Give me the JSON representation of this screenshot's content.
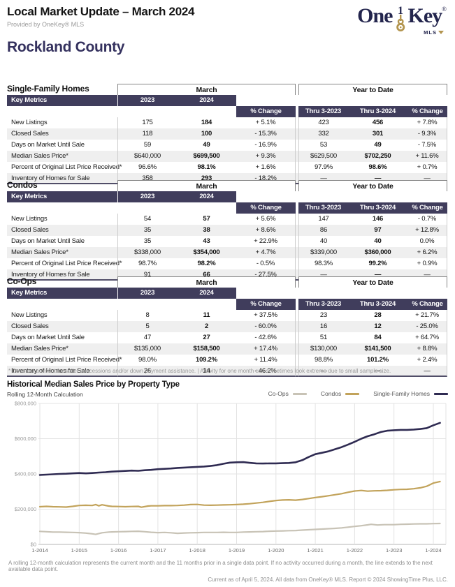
{
  "header": {
    "title": "Local Market Update – March 2024",
    "subtitle": "Provided by OneKey® MLS",
    "region": "Rockland County",
    "logo": {
      "one": "One",
      "key": "Key",
      "reg": "®",
      "numeral": "1",
      "mls": "MLS",
      "gold": "#b3954f",
      "navy": "#23254d"
    }
  },
  "tables": [
    {
      "section": "Single-Family Homes",
      "group_headers": [
        "March",
        "Year to Date"
      ],
      "key_metrics_label": "Key Metrics",
      "columns": [
        "2023",
        "2024",
        "% Change",
        "Thru 3-2023",
        "Thru 3-2024",
        "% Change"
      ],
      "rows": [
        {
          "metric": "New Listings",
          "values": [
            "175",
            "184",
            "+ 5.1%",
            "423",
            "456",
            "+ 7.8%"
          ]
        },
        {
          "metric": "Closed Sales",
          "values": [
            "118",
            "100",
            "- 15.3%",
            "332",
            "301",
            "- 9.3%"
          ]
        },
        {
          "metric": "Days on Market Until Sale",
          "values": [
            "59",
            "49",
            "- 16.9%",
            "53",
            "49",
            "- 7.5%"
          ]
        },
        {
          "metric": "Median Sales Price*",
          "values": [
            "$640,000",
            "$699,500",
            "+ 9.3%",
            "$629,500",
            "$702,250",
            "+ 11.6%"
          ]
        },
        {
          "metric": "Percent of Original List Price Received*",
          "values": [
            "96.6%",
            "98.1%",
            "+ 1.6%",
            "97.9%",
            "98.6%",
            "+ 0.7%"
          ]
        },
        {
          "metric": "Inventory of Homes for Sale",
          "values": [
            "358",
            "293",
            "- 18.2%",
            "—",
            "—",
            "—"
          ]
        }
      ]
    },
    {
      "section": "Condos",
      "group_headers": [
        "March",
        "Year to Date"
      ],
      "key_metrics_label": "Key Metrics",
      "columns": [
        "2023",
        "2024",
        "% Change",
        "Thru 3-2023",
        "Thru 3-2024",
        "% Change"
      ],
      "rows": [
        {
          "metric": "New Listings",
          "values": [
            "54",
            "57",
            "+ 5.6%",
            "147",
            "146",
            "- 0.7%"
          ]
        },
        {
          "metric": "Closed Sales",
          "values": [
            "35",
            "38",
            "+ 8.6%",
            "86",
            "97",
            "+ 12.8%"
          ]
        },
        {
          "metric": "Days on Market Until Sale",
          "values": [
            "35",
            "43",
            "+ 22.9%",
            "40",
            "40",
            "0.0%"
          ]
        },
        {
          "metric": "Median Sales Price*",
          "values": [
            "$338,000",
            "$354,000",
            "+ 4.7%",
            "$339,000",
            "$360,000",
            "+ 6.2%"
          ]
        },
        {
          "metric": "Percent of Original List Price Received*",
          "values": [
            "98.7%",
            "98.2%",
            "- 0.5%",
            "98.3%",
            "99.2%",
            "+ 0.9%"
          ]
        },
        {
          "metric": "Inventory of Homes for Sale",
          "values": [
            "91",
            "66",
            "- 27.5%",
            "—",
            "—",
            "—"
          ]
        }
      ]
    },
    {
      "section": "Co-Ops",
      "group_headers": [
        "March",
        "Year to Date"
      ],
      "key_metrics_label": "Key Metrics",
      "columns": [
        "2023",
        "2024",
        "% Change",
        "Thru 3-2023",
        "Thru 3-2024",
        "% Change"
      ],
      "rows": [
        {
          "metric": "New Listings",
          "values": [
            "8",
            "11",
            "+ 37.5%",
            "23",
            "28",
            "+ 21.7%"
          ]
        },
        {
          "metric": "Closed Sales",
          "values": [
            "5",
            "2",
            "- 60.0%",
            "16",
            "12",
            "- 25.0%"
          ]
        },
        {
          "metric": "Days on Market Until Sale",
          "values": [
            "47",
            "27",
            "- 42.6%",
            "51",
            "84",
            "+ 64.7%"
          ]
        },
        {
          "metric": "Median Sales Price*",
          "values": [
            "$135,000",
            "$158,500",
            "+ 17.4%",
            "$130,000",
            "$141,500",
            "+ 8.8%"
          ]
        },
        {
          "metric": "Percent of Original List Price Received*",
          "values": [
            "98.0%",
            "109.2%",
            "+ 11.4%",
            "98.8%",
            "101.2%",
            "+ 2.4%"
          ]
        },
        {
          "metric": "Inventory of Homes for Sale",
          "values": [
            "26",
            "14",
            "- 46.2%",
            "—",
            "—",
            "—"
          ]
        }
      ]
    }
  ],
  "table_footnote": "* Does not account for seller concessions and/or down payment assistance. | Activity for one month can sometimes look extreme due to small sample size.",
  "chart_data": {
    "type": "line",
    "title": "Historical Median Sales Price by Property Type",
    "subtitle": "Rolling 12-Month Calculation",
    "legend": [
      {
        "label": "Co-Ops",
        "color": "#c8c3b6"
      },
      {
        "label": "Condos",
        "color": "#c2a35b"
      },
      {
        "label": "Single-Family Homes",
        "color": "#2f2b52"
      }
    ],
    "legend_position": "top-right",
    "grid": true,
    "y_ticks": [
      0,
      200000,
      400000,
      600000,
      800000
    ],
    "y_tick_labels": [
      "$0",
      "$200,000",
      "$400,000",
      "$600,000",
      "$800,000"
    ],
    "x_tick_years": [
      2014,
      2015,
      2016,
      2017,
      2018,
      2019,
      2020,
      2021,
      2022,
      2023,
      2024
    ],
    "x_ticks": [
      "1-2014",
      "1-2015",
      "1-2016",
      "1-2017",
      "1-2018",
      "1-2019",
      "1-2020",
      "1-2021",
      "1-2022",
      "1-2023",
      "1-2024"
    ],
    "x_range": [
      2014,
      2024.25
    ],
    "y_range": [
      0,
      800000
    ],
    "series": [
      {
        "name": "Co-Ops",
        "color": "#c8c3b6",
        "points": [
          [
            2014.0,
            74000
          ],
          [
            2014.17,
            72000
          ],
          [
            2014.33,
            70000
          ],
          [
            2014.5,
            70000
          ],
          [
            2014.67,
            69000
          ],
          [
            2014.83,
            68000
          ],
          [
            2015.0,
            67000
          ],
          [
            2015.17,
            64000
          ],
          [
            2015.33,
            60000
          ],
          [
            2015.42,
            57000
          ],
          [
            2015.58,
            66000
          ],
          [
            2015.75,
            70000
          ],
          [
            2015.83,
            71000
          ],
          [
            2016.0,
            72000
          ],
          [
            2016.17,
            73000
          ],
          [
            2016.33,
            74000
          ],
          [
            2016.5,
            75000
          ],
          [
            2016.67,
            72000
          ],
          [
            2016.83,
            69000
          ],
          [
            2017.0,
            67000
          ],
          [
            2017.17,
            68000
          ],
          [
            2017.33,
            66000
          ],
          [
            2017.5,
            63000
          ],
          [
            2017.67,
            65000
          ],
          [
            2017.83,
            66000
          ],
          [
            2018.0,
            67000
          ],
          [
            2018.17,
            68000
          ],
          [
            2018.33,
            68000
          ],
          [
            2018.5,
            68000
          ],
          [
            2018.67,
            69000
          ],
          [
            2018.83,
            68000
          ],
          [
            2019.0,
            68000
          ],
          [
            2019.17,
            70000
          ],
          [
            2019.33,
            71000
          ],
          [
            2019.5,
            72000
          ],
          [
            2019.67,
            73000
          ],
          [
            2019.83,
            75000
          ],
          [
            2020.0,
            76000
          ],
          [
            2020.17,
            77000
          ],
          [
            2020.33,
            78000
          ],
          [
            2020.5,
            79000
          ],
          [
            2020.67,
            81000
          ],
          [
            2020.83,
            83000
          ],
          [
            2021.0,
            85000
          ],
          [
            2021.17,
            87000
          ],
          [
            2021.33,
            89000
          ],
          [
            2021.5,
            91000
          ],
          [
            2021.67,
            94000
          ],
          [
            2021.83,
            98000
          ],
          [
            2022.0,
            102000
          ],
          [
            2022.17,
            106000
          ],
          [
            2022.33,
            111000
          ],
          [
            2022.42,
            114000
          ],
          [
            2022.58,
            110000
          ],
          [
            2022.75,
            112000
          ],
          [
            2023.0,
            112000
          ],
          [
            2023.17,
            114000
          ],
          [
            2023.33,
            115000
          ],
          [
            2023.5,
            116000
          ],
          [
            2023.67,
            117000
          ],
          [
            2023.83,
            117000
          ],
          [
            2024.0,
            118000
          ],
          [
            2024.17,
            119000
          ]
        ]
      },
      {
        "name": "Condos",
        "color": "#c2a35b",
        "points": [
          [
            2014.0,
            214000
          ],
          [
            2014.17,
            216000
          ],
          [
            2014.33,
            214000
          ],
          [
            2014.5,
            213000
          ],
          [
            2014.67,
            212000
          ],
          [
            2014.83,
            216000
          ],
          [
            2015.0,
            221000
          ],
          [
            2015.17,
            222000
          ],
          [
            2015.33,
            221000
          ],
          [
            2015.42,
            226000
          ],
          [
            2015.5,
            219000
          ],
          [
            2015.58,
            225000
          ],
          [
            2015.75,
            218000
          ],
          [
            2015.83,
            216000
          ],
          [
            2016.0,
            215000
          ],
          [
            2016.17,
            214000
          ],
          [
            2016.33,
            215000
          ],
          [
            2016.5,
            216000
          ],
          [
            2016.58,
            211000
          ],
          [
            2016.75,
            218000
          ],
          [
            2016.83,
            219000
          ],
          [
            2017.0,
            219000
          ],
          [
            2017.17,
            220000
          ],
          [
            2017.33,
            220000
          ],
          [
            2017.5,
            221000
          ],
          [
            2017.67,
            223000
          ],
          [
            2017.83,
            226000
          ],
          [
            2018.0,
            227000
          ],
          [
            2018.17,
            223000
          ],
          [
            2018.33,
            222000
          ],
          [
            2018.5,
            223000
          ],
          [
            2018.67,
            224000
          ],
          [
            2018.83,
            225000
          ],
          [
            2019.0,
            226000
          ],
          [
            2019.17,
            228000
          ],
          [
            2019.33,
            231000
          ],
          [
            2019.5,
            235000
          ],
          [
            2019.67,
            239000
          ],
          [
            2019.83,
            244000
          ],
          [
            2020.0,
            249000
          ],
          [
            2020.17,
            252000
          ],
          [
            2020.33,
            253000
          ],
          [
            2020.5,
            251000
          ],
          [
            2020.67,
            255000
          ],
          [
            2020.83,
            260000
          ],
          [
            2021.0,
            266000
          ],
          [
            2021.17,
            271000
          ],
          [
            2021.33,
            276000
          ],
          [
            2021.5,
            282000
          ],
          [
            2021.67,
            288000
          ],
          [
            2021.83,
            296000
          ],
          [
            2022.0,
            303000
          ],
          [
            2022.17,
            306000
          ],
          [
            2022.33,
            302000
          ],
          [
            2022.5,
            304000
          ],
          [
            2022.67,
            305000
          ],
          [
            2022.83,
            307000
          ],
          [
            2023.0,
            310000
          ],
          [
            2023.17,
            312000
          ],
          [
            2023.33,
            313000
          ],
          [
            2023.5,
            316000
          ],
          [
            2023.67,
            321000
          ],
          [
            2023.83,
            330000
          ],
          [
            2024.0,
            348000
          ],
          [
            2024.17,
            357000
          ]
        ]
      },
      {
        "name": "Single-Family Homes",
        "color": "#2f2b52",
        "points": [
          [
            2014.0,
            394000
          ],
          [
            2014.17,
            396000
          ],
          [
            2014.33,
            398000
          ],
          [
            2014.5,
            400000
          ],
          [
            2014.67,
            401000
          ],
          [
            2014.83,
            403000
          ],
          [
            2015.0,
            405000
          ],
          [
            2015.17,
            403000
          ],
          [
            2015.33,
            405000
          ],
          [
            2015.5,
            408000
          ],
          [
            2015.67,
            410000
          ],
          [
            2015.83,
            413000
          ],
          [
            2016.0,
            415000
          ],
          [
            2016.17,
            417000
          ],
          [
            2016.33,
            419000
          ],
          [
            2016.5,
            418000
          ],
          [
            2016.67,
            421000
          ],
          [
            2016.83,
            423000
          ],
          [
            2017.0,
            427000
          ],
          [
            2017.17,
            429000
          ],
          [
            2017.33,
            431000
          ],
          [
            2017.5,
            434000
          ],
          [
            2017.67,
            436000
          ],
          [
            2017.83,
            438000
          ],
          [
            2018.0,
            440000
          ],
          [
            2018.17,
            442000
          ],
          [
            2018.33,
            445000
          ],
          [
            2018.5,
            450000
          ],
          [
            2018.67,
            458000
          ],
          [
            2018.83,
            464000
          ],
          [
            2019.0,
            466000
          ],
          [
            2019.17,
            467000
          ],
          [
            2019.33,
            463000
          ],
          [
            2019.5,
            460000
          ],
          [
            2019.67,
            459000
          ],
          [
            2019.83,
            460000
          ],
          [
            2020.0,
            460000
          ],
          [
            2020.17,
            461000
          ],
          [
            2020.33,
            462000
          ],
          [
            2020.5,
            466000
          ],
          [
            2020.67,
            478000
          ],
          [
            2020.83,
            496000
          ],
          [
            2021.0,
            512000
          ],
          [
            2021.17,
            520000
          ],
          [
            2021.33,
            528000
          ],
          [
            2021.5,
            540000
          ],
          [
            2021.67,
            552000
          ],
          [
            2021.83,
            566000
          ],
          [
            2022.0,
            582000
          ],
          [
            2022.17,
            600000
          ],
          [
            2022.33,
            614000
          ],
          [
            2022.5,
            625000
          ],
          [
            2022.67,
            638000
          ],
          [
            2022.83,
            645000
          ],
          [
            2023.0,
            648000
          ],
          [
            2023.17,
            650000
          ],
          [
            2023.33,
            650000
          ],
          [
            2023.5,
            652000
          ],
          [
            2023.67,
            655000
          ],
          [
            2023.83,
            660000
          ],
          [
            2024.0,
            676000
          ],
          [
            2024.17,
            690000
          ]
        ]
      }
    ]
  },
  "chart_footnote": "A rolling 12-month calculation represents the current month and the 11 months prior in a single data point. If no activity occurred during a month, the line extends to the next available data point.",
  "footer": "Current as of April 5, 2024. All data from OneKey® MLS. Report © 2024 ShowingTime Plus, LLC."
}
